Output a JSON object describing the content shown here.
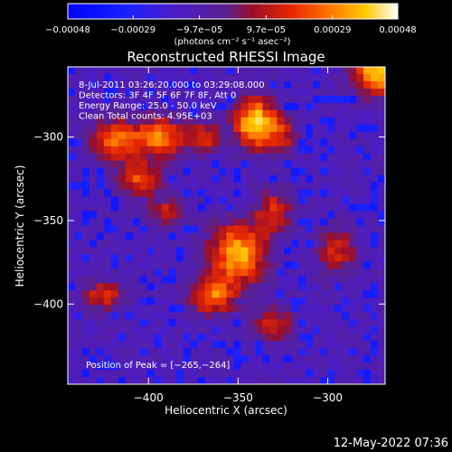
{
  "chart_data": {
    "type": "heatmap",
    "title": "Reconstructed RHESSI Image",
    "xlabel": "Heliocentric X (arcsec)",
    "ylabel": "Heliocentric Y (arcsec)",
    "xlim": [
      -445,
      -268
    ],
    "ylim": [
      -448,
      -258
    ],
    "x_ticks": [
      -400,
      -350,
      -300
    ],
    "x_tick_labels": [
      "−400",
      "−350",
      "−300"
    ],
    "y_ticks": [
      -300,
      -350,
      -400
    ],
    "y_tick_labels": [
      "−300",
      "−350",
      "−400"
    ],
    "colorbar": {
      "range": [
        -0.00048,
        0.00048
      ],
      "ticks": [
        -0.00048,
        -0.00029,
        -9.7e-05,
        9.7e-05,
        0.00029,
        0.00048
      ],
      "tick_labels": [
        "−0.00048",
        "−0.00029",
        "−9.7e−05",
        "9.7e−05",
        "0.00029",
        "0.00048"
      ],
      "units_label": "(photons cm⁻² s⁻¹ asec⁻²)"
    },
    "info_lines": [
      "8-Jul-2011 03:26:20.000 to 03:29:08.000",
      "Detectors: 3F 4F 5F 6F 7F 8F, Att 0",
      "Energy Range: 25.0 - 50.0 keV",
      "Clean     Total counts: 4.95E+03"
    ],
    "peak_label": "Position of Peak = [−265,−264]",
    "timestamp": "12-May-2022 07:36",
    "sources": [
      {
        "x": -340,
        "y": -292,
        "sx": 8,
        "sy": 10,
        "amp": 1.0
      },
      {
        "x": -418,
        "y": -302,
        "sx": 10,
        "sy": 9,
        "amp": 0.65
      },
      {
        "x": -393,
        "y": -300,
        "sx": 9,
        "sy": 8,
        "amp": 0.7
      },
      {
        "x": -405,
        "y": -325,
        "sx": 9,
        "sy": 7,
        "amp": 0.55
      },
      {
        "x": -368,
        "y": -300,
        "sx": 7,
        "sy": 7,
        "amp": 0.45
      },
      {
        "x": -350,
        "y": -370,
        "sx": 11,
        "sy": 13,
        "amp": 0.82
      },
      {
        "x": -330,
        "y": -345,
        "sx": 7,
        "sy": 9,
        "amp": 0.5
      },
      {
        "x": -365,
        "y": -395,
        "sx": 9,
        "sy": 8,
        "amp": 0.65
      },
      {
        "x": -330,
        "y": -412,
        "sx": 8,
        "sy": 7,
        "amp": 0.45
      },
      {
        "x": -425,
        "y": -395,
        "sx": 8,
        "sy": 6,
        "amp": 0.5
      },
      {
        "x": -390,
        "y": -345,
        "sx": 7,
        "sy": 6,
        "amp": 0.45
      },
      {
        "x": -272,
        "y": -262,
        "sx": 9,
        "sy": 9,
        "amp": 0.95
      },
      {
        "x": -295,
        "y": -368,
        "sx": 8,
        "sy": 10,
        "amp": 0.45
      },
      {
        "x": -325,
        "y": -300,
        "sx": 5,
        "sy": 8,
        "amp": 0.4
      }
    ]
  }
}
